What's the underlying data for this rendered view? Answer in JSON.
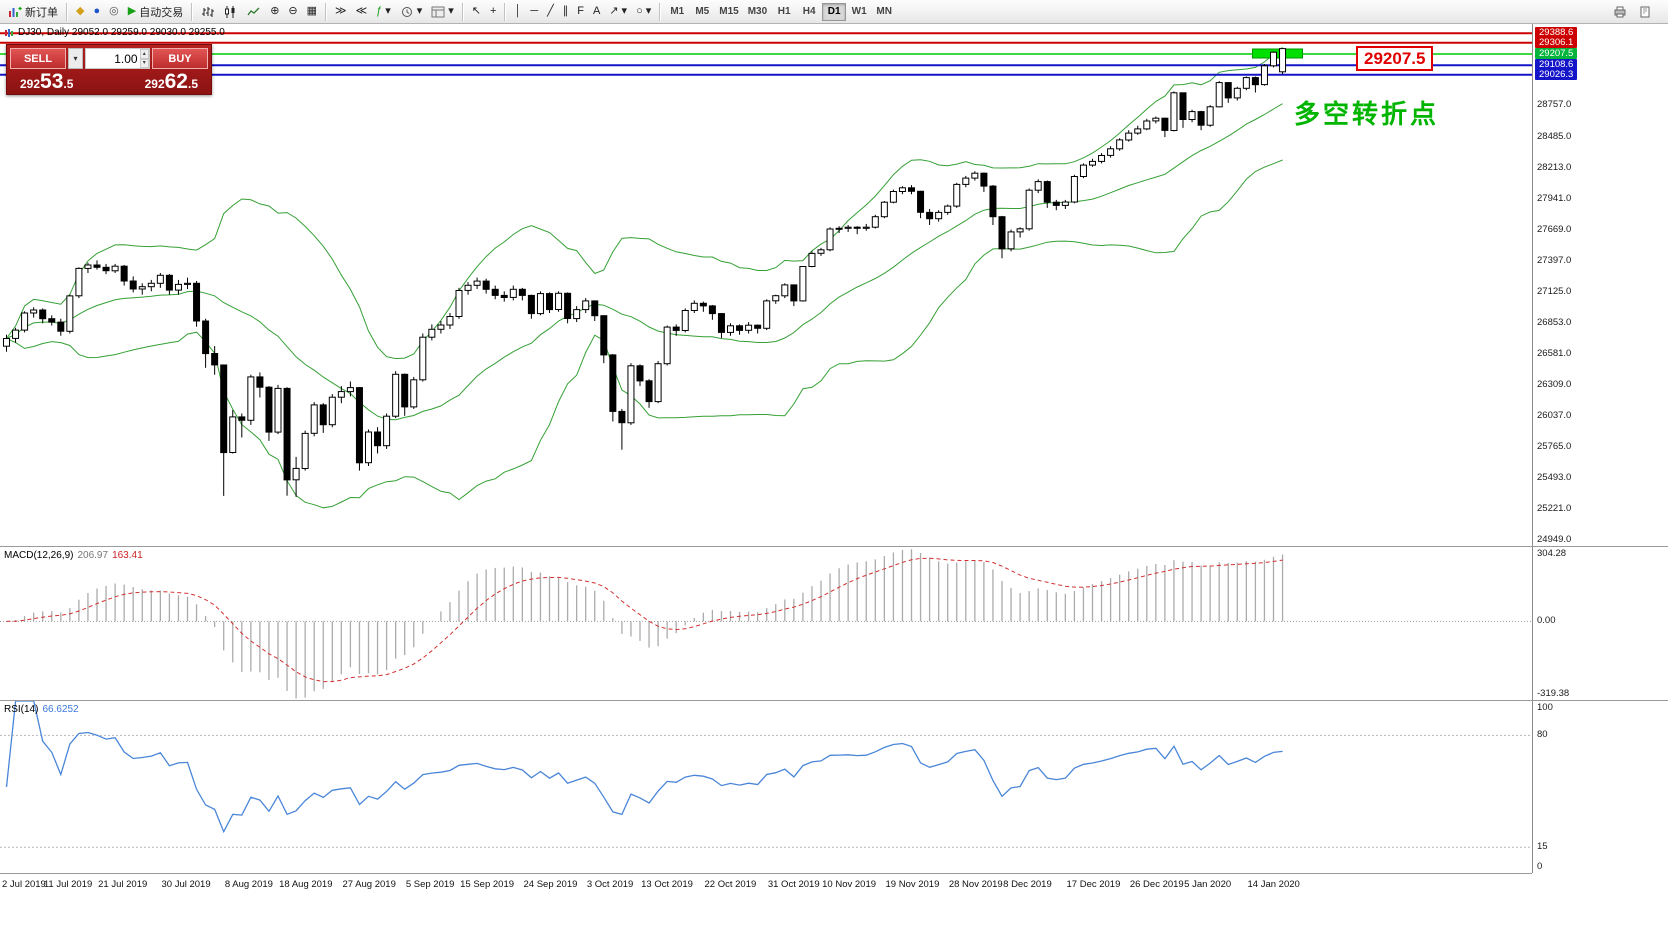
{
  "toolbar": {
    "new_order_label": "新订单",
    "autotrade_label": "自动交易",
    "timeframes": [
      "M1",
      "M5",
      "M15",
      "M30",
      "H1",
      "H4",
      "D1",
      "W1",
      "MN"
    ],
    "active_timeframe": "D1"
  },
  "icons": {
    "charts": "◆",
    "profiles": "●",
    "terminal": "◎",
    "autotrading_play": "▶",
    "zoom_in": "⊕",
    "zoom_out": "⊖",
    "tile": "▦",
    "auto_scroll": "≫",
    "chart_shift": "≪",
    "indicators": "ƒ",
    "cursor": "↖",
    "crosshair": "+",
    "vline": "│",
    "hline": "─",
    "trendline": "╱",
    "channel": "∥",
    "fibonacci": "F",
    "text": "A",
    "arrow": "↗",
    "shapes": "○",
    "dropdown": "▾",
    "spin_up": "▴",
    "spin_down": "▾"
  },
  "chart": {
    "title": "DJ30, Daily  29052.0 29259.0 29030.0 29255.0"
  },
  "order_panel": {
    "sell_label": "SELL",
    "buy_label": "BUY",
    "volume": "1.00",
    "sell_price": "29253.5",
    "buy_price": "29262.5"
  },
  "annotations": {
    "price_box": "29207.5",
    "turning_point": "多空转折点"
  },
  "price_axis": {
    "special": [
      [
        "29388.6",
        "#cc0000"
      ],
      [
        "29306.1",
        "#cc0000"
      ],
      [
        "29207.5",
        "#00b43c"
      ],
      [
        "29108.6",
        "#1414c8"
      ],
      [
        "29026.3",
        "#1414c8"
      ]
    ],
    "regular": [
      "28757.0",
      "28485.0",
      "28213.0",
      "27941.0",
      "27669.0",
      "27397.0",
      "27125.0",
      "26853.0",
      "26581.0",
      "26309.0",
      "26037.0",
      "25765.0",
      "25493.0",
      "25221.0",
      "24949.0"
    ]
  },
  "hlines": [
    [
      29388.6,
      "#cc0000",
      2
    ],
    [
      29306.1,
      "#cc0000",
      2
    ],
    [
      29207.5,
      "#00cc00",
      1.5
    ],
    [
      29108.6,
      "#1414c8",
      2
    ],
    [
      29026.3,
      "#1414c8",
      2
    ]
  ],
  "highlight": {
    "price": 29207.5,
    "color": "#00e000"
  },
  "macd": {
    "name": "MACD(12,26,9)",
    "main_value": "206.97",
    "signal_value": "163.41",
    "scale_max": "304.28",
    "scale_zero": "0.00",
    "scale_min": "-319.38"
  },
  "rsi": {
    "name": "RSI(14)",
    "value": "66.6252",
    "scale_labels": [
      [
        100,
        "100"
      ],
      [
        80,
        "80"
      ],
      [
        15,
        "15"
      ],
      [
        0,
        "0"
      ]
    ],
    "levels": [
      80,
      15
    ]
  },
  "chart_data": {
    "type": "candlestick",
    "symbol": "DJ30",
    "period": "Daily",
    "title": "DJ30, Daily 29052.0 29259.0 29030.0 29255.0",
    "price_range": [
      24900,
      29470
    ],
    "bollinger": {
      "period": 20,
      "deviation": 2,
      "color": "#35a035"
    },
    "date_ticks": [
      [
        0,
        "2 Jul 2019"
      ],
      [
        7,
        "11 Jul 2019"
      ],
      [
        13,
        "21 Jul 2019"
      ],
      [
        20,
        "30 Jul 2019"
      ],
      [
        27,
        "8 Aug 2019"
      ],
      [
        33,
        "18 Aug 2019"
      ],
      [
        40,
        "27 Aug 2019"
      ],
      [
        47,
        "5 Sep 2019"
      ],
      [
        53,
        "15 Sep 2019"
      ],
      [
        60,
        "24 Sep 2019"
      ],
      [
        67,
        "3 Oct 2019"
      ],
      [
        73,
        "13 Oct 2019"
      ],
      [
        80,
        "22 Oct 2019"
      ],
      [
        87,
        "31 Oct 2019"
      ],
      [
        93,
        "10 Nov 2019"
      ],
      [
        100,
        "19 Nov 2019"
      ],
      [
        107,
        "28 Nov 2019"
      ],
      [
        113,
        "8 Dec 2019"
      ],
      [
        120,
        "17 Dec 2019"
      ],
      [
        127,
        "26 Dec 2019"
      ],
      [
        133,
        "5 Jan 2020"
      ],
      [
        140,
        "14 Jan 2020"
      ]
    ],
    "ohlc": [
      [
        26650,
        26750,
        26600,
        26717
      ],
      [
        26717,
        26810,
        26680,
        26790
      ],
      [
        26790,
        26955,
        26770,
        26940
      ],
      [
        26940,
        26990,
        26900,
        26966
      ],
      [
        26966,
        26980,
        26850,
        26890
      ],
      [
        26890,
        26920,
        26830,
        26860
      ],
      [
        26860,
        26890,
        26740,
        26780
      ],
      [
        26780,
        27100,
        26760,
        27090
      ],
      [
        27090,
        27340,
        27070,
        27330
      ],
      [
        27330,
        27380,
        27290,
        27360
      ],
      [
        27360,
        27400,
        27320,
        27340
      ],
      [
        27340,
        27370,
        27280,
        27310
      ],
      [
        27310,
        27370,
        27290,
        27350
      ],
      [
        27350,
        27360,
        27180,
        27220
      ],
      [
        27220,
        27260,
        27120,
        27150
      ],
      [
        27150,
        27200,
        27100,
        27170
      ],
      [
        27170,
        27230,
        27130,
        27200
      ],
      [
        27200,
        27290,
        27160,
        27270
      ],
      [
        27270,
        27280,
        27100,
        27140
      ],
      [
        27140,
        27230,
        27100,
        27190
      ],
      [
        27190,
        27250,
        27150,
        27200
      ],
      [
        27200,
        27220,
        26820,
        26870
      ],
      [
        26870,
        26890,
        26460,
        26585
      ],
      [
        26585,
        26650,
        26400,
        26485
      ],
      [
        26485,
        26490,
        25339,
        25718
      ],
      [
        25718,
        26090,
        25710,
        26030
      ],
      [
        26030,
        26060,
        25850,
        26000
      ],
      [
        26000,
        26400,
        25960,
        26380
      ],
      [
        26380,
        26420,
        26200,
        26290
      ],
      [
        26290,
        26300,
        25820,
        25897
      ],
      [
        25897,
        26310,
        25880,
        26280
      ],
      [
        26280,
        26290,
        25340,
        25479
      ],
      [
        25479,
        25680,
        25330,
        25579
      ],
      [
        25579,
        25910,
        25560,
        25886
      ],
      [
        25886,
        26160,
        25860,
        26135
      ],
      [
        26135,
        26150,
        25890,
        25962
      ],
      [
        25962,
        26230,
        25940,
        26203
      ],
      [
        26203,
        26300,
        26150,
        26252
      ],
      [
        26252,
        26340,
        26210,
        26287
      ],
      [
        26287,
        26290,
        25560,
        25629
      ],
      [
        25629,
        25920,
        25600,
        25898
      ],
      [
        25898,
        25940,
        25710,
        25778
      ],
      [
        25778,
        26060,
        25750,
        26036
      ],
      [
        26036,
        26430,
        26020,
        26403
      ],
      [
        26403,
        26410,
        26040,
        26118
      ],
      [
        26118,
        26380,
        26100,
        26355
      ],
      [
        26355,
        26760,
        26340,
        26728
      ],
      [
        26728,
        26840,
        26700,
        26797
      ],
      [
        26797,
        26870,
        26760,
        26835
      ],
      [
        26835,
        26940,
        26800,
        26909
      ],
      [
        26909,
        27160,
        26890,
        27137
      ],
      [
        27137,
        27210,
        27100,
        27182
      ],
      [
        27182,
        27250,
        27150,
        27219
      ],
      [
        27219,
        27240,
        27110,
        27147
      ],
      [
        27147,
        27180,
        27060,
        27094
      ],
      [
        27094,
        27130,
        27040,
        27076
      ],
      [
        27076,
        27180,
        27050,
        27147
      ],
      [
        27147,
        27160,
        27050,
        27094
      ],
      [
        27094,
        27100,
        26890,
        26935
      ],
      [
        26935,
        27130,
        26920,
        27110
      ],
      [
        27110,
        27120,
        26940,
        26970
      ],
      [
        26970,
        27130,
        26950,
        27112
      ],
      [
        27112,
        27120,
        26850,
        26891
      ],
      [
        26891,
        27000,
        26860,
        26970
      ],
      [
        26970,
        27070,
        26940,
        27046
      ],
      [
        27046,
        27050,
        26870,
        26916
      ],
      [
        26916,
        26920,
        26500,
        26573
      ],
      [
        26573,
        26580,
        25990,
        26078
      ],
      [
        26078,
        26100,
        25743,
        25979
      ],
      [
        25979,
        26500,
        25960,
        26478
      ],
      [
        26478,
        26490,
        26300,
        26346
      ],
      [
        26346,
        26360,
        26110,
        26164
      ],
      [
        26164,
        26520,
        26150,
        26496
      ],
      [
        26496,
        26830,
        26480,
        26816
      ],
      [
        26816,
        26840,
        26740,
        26787
      ],
      [
        26787,
        26980,
        26770,
        26962
      ],
      [
        26962,
        27050,
        26940,
        27025
      ],
      [
        27025,
        27040,
        26950,
        27002
      ],
      [
        27002,
        27010,
        26880,
        26935
      ],
      [
        26935,
        26940,
        26720,
        26770
      ],
      [
        26770,
        26850,
        26740,
        26828
      ],
      [
        26828,
        26840,
        26750,
        26788
      ],
      [
        26788,
        26860,
        26760,
        26833
      ],
      [
        26833,
        26840,
        26760,
        26806
      ],
      [
        26806,
        27060,
        26790,
        27046
      ],
      [
        27046,
        27100,
        27020,
        27091
      ],
      [
        27091,
        27200,
        27070,
        27186
      ],
      [
        27186,
        27190,
        27000,
        27046
      ],
      [
        27046,
        27350,
        27040,
        27347
      ],
      [
        27347,
        27480,
        27340,
        27462
      ],
      [
        27462,
        27510,
        27440,
        27493
      ],
      [
        27493,
        27690,
        27480,
        27675
      ],
      [
        27675,
        27700,
        27640,
        27681
      ],
      [
        27681,
        27710,
        27650,
        27691
      ],
      [
        27691,
        27700,
        27630,
        27681
      ],
      [
        27681,
        27720,
        27660,
        27691
      ],
      [
        27691,
        27800,
        27680,
        27783
      ],
      [
        27783,
        27920,
        27770,
        27910
      ],
      [
        27910,
        28020,
        27900,
        28004
      ],
      [
        28004,
        28050,
        27980,
        28036
      ],
      [
        28036,
        28060,
        27980,
        28005
      ],
      [
        28005,
        28010,
        27770,
        27821
      ],
      [
        27821,
        27850,
        27710,
        27766
      ],
      [
        27766,
        27840,
        27740,
        27821
      ],
      [
        27821,
        27890,
        27800,
        27876
      ],
      [
        27876,
        28080,
        27860,
        28066
      ],
      [
        28066,
        28140,
        28040,
        28121
      ],
      [
        28121,
        28180,
        28100,
        28164
      ],
      [
        28164,
        28170,
        28000,
        28051
      ],
      [
        28051,
        28060,
        27710,
        27783
      ],
      [
        27783,
        27790,
        27420,
        27502
      ],
      [
        27502,
        27670,
        27480,
        27650
      ],
      [
        27650,
        27690,
        27600,
        27677
      ],
      [
        27677,
        28030,
        27660,
        28015
      ],
      [
        28015,
        28110,
        27990,
        28090
      ],
      [
        28090,
        28100,
        27860,
        27910
      ],
      [
        27910,
        27930,
        27840,
        27882
      ],
      [
        27882,
        27930,
        27850,
        27912
      ],
      [
        27912,
        28150,
        27900,
        28135
      ],
      [
        28135,
        28250,
        28120,
        28235
      ],
      [
        28235,
        28290,
        28220,
        28267
      ],
      [
        28267,
        28340,
        28250,
        28319
      ],
      [
        28319,
        28400,
        28300,
        28377
      ],
      [
        28377,
        28470,
        28360,
        28455
      ],
      [
        28455,
        28540,
        28440,
        28515
      ],
      [
        28515,
        28580,
        28500,
        28552
      ],
      [
        28552,
        28640,
        28540,
        28621
      ],
      [
        28621,
        28660,
        28600,
        28645
      ],
      [
        28645,
        28650,
        28480,
        28538
      ],
      [
        28538,
        28880,
        28530,
        28868
      ],
      [
        28868,
        28870,
        28560,
        28634
      ],
      [
        28634,
        28720,
        28610,
        28703
      ],
      [
        28703,
        28710,
        28540,
        28584
      ],
      [
        28584,
        28760,
        28570,
        28745
      ],
      [
        28745,
        28970,
        28740,
        28957
      ],
      [
        28957,
        28960,
        28780,
        28823
      ],
      [
        28823,
        28920,
        28800,
        28907
      ],
      [
        28907,
        29010,
        28890,
        29001
      ],
      [
        29001,
        29010,
        28870,
        28939
      ],
      [
        28939,
        29120,
        28930,
        29104
      ],
      [
        29104,
        29230,
        29090,
        29223
      ],
      [
        29052,
        29259,
        29030,
        29255
      ]
    ],
    "indicators": [
      {
        "name": "MACD",
        "params": [
          12,
          26,
          9
        ],
        "values": [
          206.97,
          163.41
        ],
        "scale": [
          304.28,
          0,
          -319.38
        ]
      },
      {
        "name": "RSI",
        "params": [
          14
        ],
        "value": 66.6252,
        "levels": [
          80,
          15
        ]
      }
    ]
  }
}
